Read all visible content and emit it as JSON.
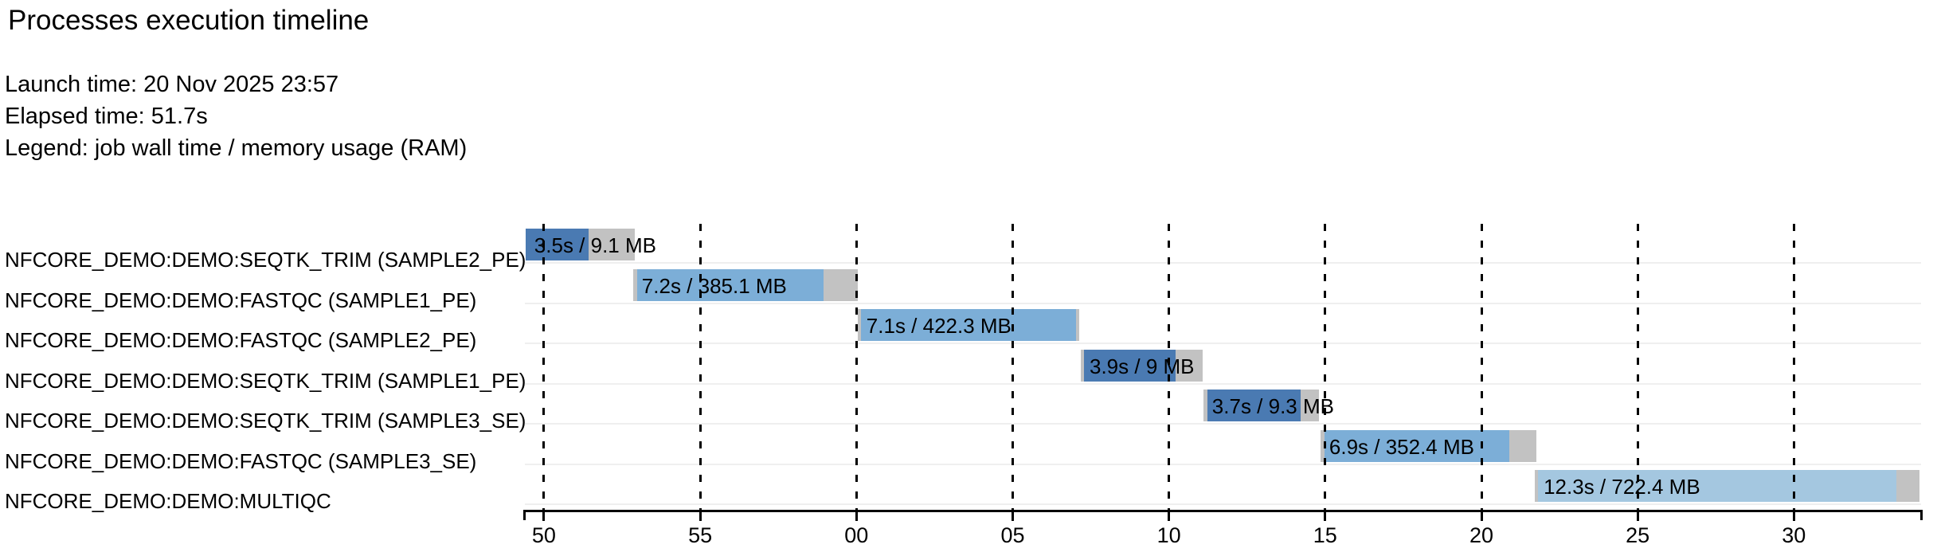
{
  "header": {
    "title": "Processes execution timeline",
    "meta_lines": [
      "Launch time: 20 Nov 2025 23:57",
      "Elapsed time: 51.7s",
      "Legend: job wall time / memory usage (RAM)"
    ],
    "launch_time": "20 Nov 2025 23:57",
    "elapsed_time": "51.7s",
    "legend": "job wall time / memory usage (RAM)"
  },
  "colors": {
    "seqtk_trim_bar": "#4a7ab2",
    "fastqc_bar": "#7caed7",
    "multiqc_bar": "#a4c7e0",
    "overhead_gray": "#c2c2c2",
    "row_separator": "#efefef",
    "axis_and_grid": "#000000",
    "background": "#ffffff"
  },
  "chart_data": {
    "type": "gantt",
    "title": "Processes execution timeline",
    "legend_note": "job wall time / memory usage (RAM)",
    "grid": "dashed vertical gridlines at each tick",
    "x_axis": {
      "description": "wall-clock seconds after 23:57:00; labels wrap at the minute",
      "start_s": 49.39,
      "end_s": 94.07,
      "tick_interval_s": 5,
      "ticks": [
        {
          "t": 50,
          "label": "50"
        },
        {
          "t": 55,
          "label": "55"
        },
        {
          "t": 60,
          "label": "00"
        },
        {
          "t": 65,
          "label": "05"
        },
        {
          "t": 70,
          "label": "10"
        },
        {
          "t": 75,
          "label": "15"
        },
        {
          "t": 80,
          "label": "20"
        },
        {
          "t": 85,
          "label": "25"
        },
        {
          "t": 90,
          "label": "30"
        }
      ]
    },
    "tasks": [
      {
        "name": "NFCORE_DEMO:DEMO:SEQTK_TRIM (SAMPLE2_PE)",
        "bar_label": "3.5s / 9.1 MB",
        "wall_time": "3.5s",
        "memory": "9.1 MB",
        "start_s": 49.41,
        "pre_s": 0.0,
        "fill_s": 2.01,
        "post_s": 1.49,
        "color": "#4a7ab2"
      },
      {
        "name": "NFCORE_DEMO:DEMO:FASTQC (SAMPLE1_PE)",
        "bar_label": "7.2s / 385.1 MB",
        "wall_time": "7.2s",
        "memory": "385.1 MB",
        "start_s": 52.85,
        "pre_s": 0.13,
        "fill_s": 5.97,
        "post_s": 1.1,
        "color": "#7caed7"
      },
      {
        "name": "NFCORE_DEMO:DEMO:FASTQC (SAMPLE2_PE)",
        "bar_label": "7.1s / 422.3 MB",
        "wall_time": "7.1s",
        "memory": "422.3 MB",
        "start_s": 60.04,
        "pre_s": 0.1,
        "fill_s": 6.9,
        "post_s": 0.1,
        "color": "#7caed7"
      },
      {
        "name": "NFCORE_DEMO:DEMO:SEQTK_TRIM (SAMPLE1_PE)",
        "bar_label": "3.9s / 9 MB",
        "wall_time": "3.9s",
        "memory": "9 MB",
        "start_s": 67.18,
        "pre_s": 0.1,
        "fill_s": 2.93,
        "post_s": 0.87,
        "color": "#4a7ab2"
      },
      {
        "name": "NFCORE_DEMO:DEMO:SEQTK_TRIM (SAMPLE3_SE)",
        "bar_label": "3.7s / 9.3 MB",
        "wall_time": "3.7s",
        "memory": "9.3 MB",
        "start_s": 71.1,
        "pre_s": 0.13,
        "fill_s": 2.98,
        "post_s": 0.59,
        "color": "#4a7ab2"
      },
      {
        "name": "NFCORE_DEMO:DEMO:FASTQC (SAMPLE3_SE)",
        "bar_label": "6.9s / 352.4 MB",
        "wall_time": "6.9s",
        "memory": "352.4 MB",
        "start_s": 74.85,
        "pre_s": 0.13,
        "fill_s": 5.91,
        "post_s": 0.86,
        "color": "#7caed7"
      },
      {
        "name": "NFCORE_DEMO:DEMO:MULTIQC",
        "bar_label": "12.3s / 722.4 MB",
        "wall_time": "12.3s",
        "memory": "722.4 MB",
        "start_s": 81.71,
        "pre_s": 0.1,
        "fill_s": 11.46,
        "post_s": 0.74,
        "color": "#a4c7e0"
      }
    ]
  }
}
